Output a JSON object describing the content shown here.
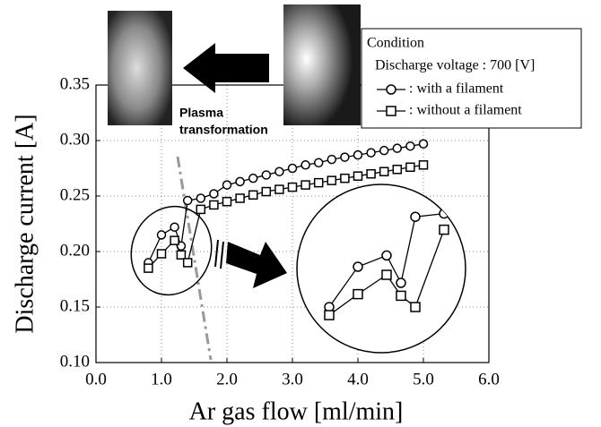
{
  "chart_data": {
    "type": "line",
    "x_label": "Ar gas flow [ml/min]",
    "y_label": "Discharge current [A]",
    "xlim": [
      0,
      6
    ],
    "ylim": [
      0.1,
      0.35
    ],
    "xticks": [
      {
        "value": 0,
        "label": "0.0"
      },
      {
        "value": 1,
        "label": "1.0"
      },
      {
        "value": 2,
        "label": "2.0"
      },
      {
        "value": 3,
        "label": "3.0"
      },
      {
        "value": 4,
        "label": "4.0"
      },
      {
        "value": 5,
        "label": "5.0"
      },
      {
        "value": 6,
        "label": "6.0"
      }
    ],
    "yticks": [
      {
        "value": 0.1,
        "label": "0.10"
      },
      0.15,
      {
        "value": 0.2,
        "label": "0.20"
      },
      0.25,
      {
        "value": 0.3,
        "label": "0.30"
      },
      0.35
    ],
    "grid": true,
    "legend_title": "Condition",
    "legend_note": "Discharge voltage : 700 [V]",
    "annotation": [
      "Plasma",
      "transformation"
    ],
    "series": [
      {
        "name": ": with a filament",
        "color": "#000000",
        "marker": "circle",
        "x": [
          0.8,
          1.0,
          1.2,
          1.3,
          1.4,
          1.6,
          1.8,
          2.0,
          2.2,
          2.4,
          2.6,
          2.8,
          3.0,
          3.2,
          3.4,
          3.6,
          3.8,
          4.0,
          4.2,
          4.4,
          4.6,
          4.8,
          5.0
        ],
        "values": [
          0.19,
          0.215,
          0.222,
          0.205,
          0.246,
          0.248,
          0.252,
          0.26,
          0.263,
          0.266,
          0.269,
          0.272,
          0.275,
          0.278,
          0.28,
          0.283,
          0.285,
          0.287,
          0.289,
          0.291,
          0.293,
          0.295,
          0.297
        ]
      },
      {
        "name": ": without a filament",
        "color": "#000000",
        "marker": "square",
        "x": [
          0.8,
          1.0,
          1.2,
          1.3,
          1.4,
          1.6,
          1.8,
          2.0,
          2.2,
          2.4,
          2.6,
          2.8,
          3.0,
          3.2,
          3.4,
          3.6,
          3.8,
          4.0,
          4.2,
          4.4,
          4.6,
          4.8,
          5.0
        ],
        "values": [
          0.185,
          0.198,
          0.21,
          0.197,
          0.19,
          0.238,
          0.242,
          0.245,
          0.248,
          0.251,
          0.254,
          0.256,
          0.258,
          0.26,
          0.262,
          0.264,
          0.266,
          0.268,
          0.27,
          0.272,
          0.274,
          0.276,
          0.278
        ]
      }
    ]
  }
}
